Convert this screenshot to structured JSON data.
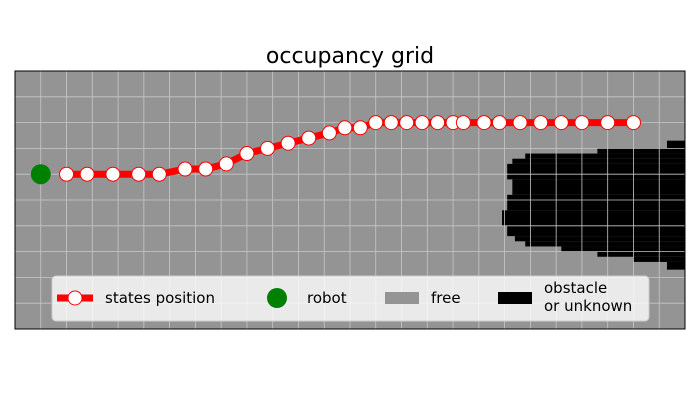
{
  "chart_data": {
    "type": "scatter",
    "title": "occupancy grid",
    "xlabel": "",
    "ylabel": "",
    "xlim": [
      0,
      26
    ],
    "ylim": [
      0,
      10
    ],
    "grid": true,
    "axes_visible": false,
    "legend": {
      "placement": "lower-center",
      "entries": [
        {
          "key": "states",
          "label": "states position"
        },
        {
          "key": "robot",
          "label": "robot"
        },
        {
          "key": "free",
          "label": "free"
        },
        {
          "key": "obstacle",
          "label_lines": [
            "obstacle",
            "or unknown"
          ]
        }
      ]
    },
    "colors": {
      "free": "#949494",
      "obstacle": "#000000",
      "path": "#ff0000",
      "state_marker_fill": "#ffffff",
      "robot": "#008000",
      "grid": "#c8c8c8"
    },
    "robot": {
      "x": 1.0,
      "y": 6.0
    },
    "series": [
      {
        "name": "states position",
        "x": [
          2.0,
          2.8,
          3.8,
          4.8,
          5.6,
          6.6,
          7.4,
          8.2,
          9.0,
          9.8,
          10.6,
          11.4,
          12.2,
          12.8,
          13.4,
          14.0,
          14.6,
          15.2,
          15.8,
          16.4,
          17.0,
          17.4,
          18.2,
          18.8,
          19.6,
          20.4,
          21.2,
          22.0,
          23.0,
          24.0
        ],
        "y": [
          6.0,
          6.0,
          6.0,
          6.0,
          6.0,
          6.2,
          6.2,
          6.4,
          6.8,
          7.0,
          7.2,
          7.4,
          7.6,
          7.8,
          7.8,
          8.0,
          8.0,
          8.0,
          8.0,
          8.0,
          8.0,
          8.0,
          8.0,
          8.0,
          8.0,
          8.0,
          8.0,
          8.0,
          8.0,
          8.0
        ]
      }
    ],
    "obstacle_rows": [
      {
        "y0": 7.0,
        "y1": 7.3,
        "x0": 25.3,
        "x1": 26.0
      },
      {
        "y0": 6.8,
        "y1": 7.0,
        "x0": 22.6,
        "x1": 26.0
      },
      {
        "y0": 6.6,
        "y1": 6.8,
        "x0": 19.8,
        "x1": 26.0
      },
      {
        "y0": 6.4,
        "y1": 6.6,
        "x0": 19.3,
        "x1": 26.0
      },
      {
        "y0": 5.8,
        "y1": 6.4,
        "x0": 19.1,
        "x1": 26.0
      },
      {
        "y0": 5.2,
        "y1": 5.8,
        "x0": 19.3,
        "x1": 26.0
      },
      {
        "y0": 4.6,
        "y1": 5.2,
        "x0": 19.1,
        "x1": 26.0
      },
      {
        "y0": 4.0,
        "y1": 4.6,
        "x0": 18.9,
        "x1": 26.0
      },
      {
        "y0": 3.6,
        "y1": 4.0,
        "x0": 19.1,
        "x1": 26.0
      },
      {
        "y0": 3.4,
        "y1": 3.6,
        "x0": 19.4,
        "x1": 26.0
      },
      {
        "y0": 3.2,
        "y1": 3.4,
        "x0": 19.8,
        "x1": 26.0
      },
      {
        "y0": 3.0,
        "y1": 3.2,
        "x0": 21.2,
        "x1": 26.0
      },
      {
        "y0": 2.8,
        "y1": 3.0,
        "x0": 22.6,
        "x1": 26.0
      },
      {
        "y0": 2.6,
        "y1": 2.8,
        "x0": 24.0,
        "x1": 26.0
      },
      {
        "y0": 2.3,
        "y1": 2.6,
        "x0": 25.3,
        "x1": 26.0
      }
    ]
  }
}
